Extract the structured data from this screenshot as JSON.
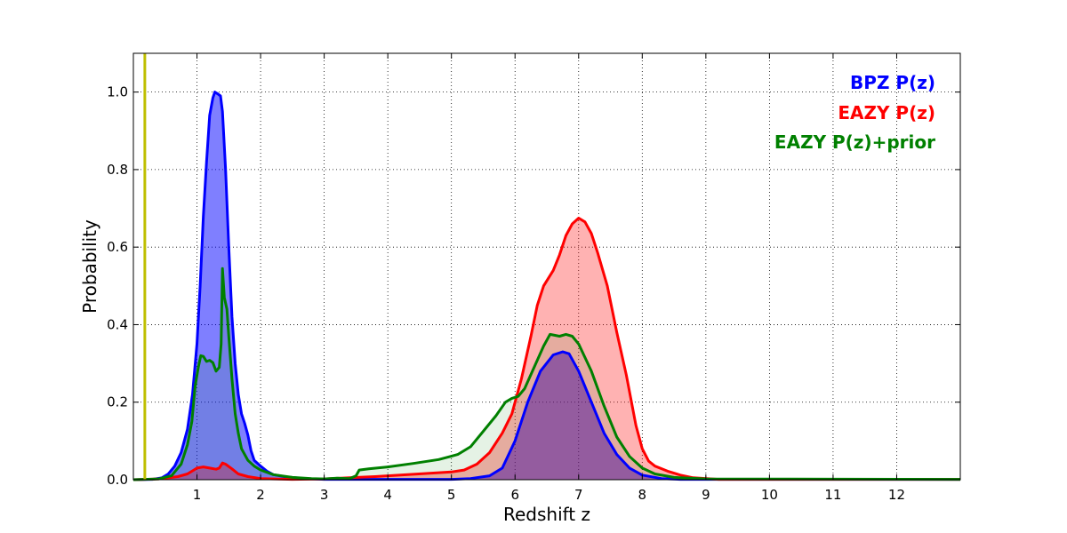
{
  "chart_data": {
    "type": "area",
    "title": "",
    "xlabel": "Redshift z",
    "ylabel": "Probability",
    "xlim": [
      0,
      13
    ],
    "ylim": [
      0,
      1.1
    ],
    "x_ticks": [
      1,
      2,
      3,
      4,
      5,
      6,
      7,
      8,
      9,
      10,
      11,
      12
    ],
    "y_ticks": [
      0.0,
      0.2,
      0.4,
      0.6,
      0.8,
      1.0
    ],
    "x_tick_labels": [
      "1",
      "2",
      "3",
      "4",
      "5",
      "6",
      "7",
      "8",
      "9",
      "10",
      "11",
      "12"
    ],
    "y_tick_labels": [
      "0.0",
      "0.2",
      "0.4",
      "0.6",
      "0.8",
      "1.0"
    ],
    "grid": true,
    "vline": {
      "x": 0.18,
      "color": "#bfbf00"
    },
    "legend_position": "top-right",
    "series": [
      {
        "name": "BPZ P(z)",
        "color": "#0000ff",
        "fill": "#0000ff",
        "fill_opacity": 0.5,
        "points": [
          [
            0,
            0
          ],
          [
            0.3,
            0.001
          ],
          [
            0.45,
            0.005
          ],
          [
            0.55,
            0.015
          ],
          [
            0.65,
            0.035
          ],
          [
            0.75,
            0.07
          ],
          [
            0.85,
            0.13
          ],
          [
            0.93,
            0.22
          ],
          [
            1.0,
            0.35
          ],
          [
            1.05,
            0.5
          ],
          [
            1.1,
            0.68
          ],
          [
            1.15,
            0.82
          ],
          [
            1.2,
            0.94
          ],
          [
            1.25,
            0.985
          ],
          [
            1.28,
            1.0
          ],
          [
            1.33,
            0.995
          ],
          [
            1.37,
            0.99
          ],
          [
            1.4,
            0.95
          ],
          [
            1.45,
            0.8
          ],
          [
            1.5,
            0.6
          ],
          [
            1.55,
            0.42
          ],
          [
            1.6,
            0.3
          ],
          [
            1.65,
            0.22
          ],
          [
            1.7,
            0.17
          ],
          [
            1.75,
            0.145
          ],
          [
            1.8,
            0.115
          ],
          [
            1.85,
            0.075
          ],
          [
            1.9,
            0.05
          ],
          [
            2.0,
            0.035
          ],
          [
            2.1,
            0.022
          ],
          [
            2.2,
            0.013
          ],
          [
            2.4,
            0.007
          ],
          [
            2.7,
            0.003
          ],
          [
            3.0,
            0.001
          ],
          [
            5.0,
            0.001
          ],
          [
            5.3,
            0.003
          ],
          [
            5.6,
            0.01
          ],
          [
            5.8,
            0.03
          ],
          [
            6.0,
            0.1
          ],
          [
            6.2,
            0.2
          ],
          [
            6.4,
            0.28
          ],
          [
            6.6,
            0.322
          ],
          [
            6.75,
            0.33
          ],
          [
            6.85,
            0.325
          ],
          [
            7.0,
            0.28
          ],
          [
            7.2,
            0.2
          ],
          [
            7.4,
            0.12
          ],
          [
            7.6,
            0.065
          ],
          [
            7.8,
            0.03
          ],
          [
            8.0,
            0.012
          ],
          [
            8.3,
            0.003
          ],
          [
            8.6,
            0.001
          ],
          [
            13,
            0.001
          ]
        ]
      },
      {
        "name": "EAZY P(z)",
        "color": "#ff0000",
        "fill": "#ff0000",
        "fill_opacity": 0.3,
        "points": [
          [
            0,
            0
          ],
          [
            0.4,
            0.002
          ],
          [
            0.7,
            0.008
          ],
          [
            0.85,
            0.015
          ],
          [
            0.95,
            0.025
          ],
          [
            1.0,
            0.03
          ],
          [
            1.1,
            0.033
          ],
          [
            1.2,
            0.03
          ],
          [
            1.3,
            0.027
          ],
          [
            1.35,
            0.03
          ],
          [
            1.4,
            0.043
          ],
          [
            1.45,
            0.04
          ],
          [
            1.55,
            0.028
          ],
          [
            1.65,
            0.015
          ],
          [
            1.8,
            0.008
          ],
          [
            2.0,
            0.003
          ],
          [
            2.5,
            0.001
          ],
          [
            3.0,
            0.002
          ],
          [
            3.4,
            0.005
          ],
          [
            3.8,
            0.008
          ],
          [
            4.2,
            0.012
          ],
          [
            4.6,
            0.016
          ],
          [
            5.0,
            0.02
          ],
          [
            5.2,
            0.025
          ],
          [
            5.4,
            0.04
          ],
          [
            5.6,
            0.07
          ],
          [
            5.8,
            0.12
          ],
          [
            5.95,
            0.17
          ],
          [
            6.1,
            0.26
          ],
          [
            6.25,
            0.37
          ],
          [
            6.35,
            0.45
          ],
          [
            6.45,
            0.5
          ],
          [
            6.6,
            0.54
          ],
          [
            6.7,
            0.58
          ],
          [
            6.8,
            0.63
          ],
          [
            6.9,
            0.66
          ],
          [
            7.0,
            0.675
          ],
          [
            7.1,
            0.665
          ],
          [
            7.2,
            0.635
          ],
          [
            7.3,
            0.585
          ],
          [
            7.45,
            0.5
          ],
          [
            7.6,
            0.38
          ],
          [
            7.75,
            0.27
          ],
          [
            7.9,
            0.14
          ],
          [
            8.0,
            0.08
          ],
          [
            8.1,
            0.048
          ],
          [
            8.2,
            0.035
          ],
          [
            8.4,
            0.022
          ],
          [
            8.6,
            0.012
          ],
          [
            8.8,
            0.005
          ],
          [
            9.2,
            0.001
          ],
          [
            13,
            0.001
          ]
        ]
      },
      {
        "name": "EAZY P(z)+prior",
        "color": "#008000",
        "fill": "#008000",
        "fill_opacity": 0.1,
        "points": [
          [
            0,
            0
          ],
          [
            0.4,
            0.002
          ],
          [
            0.6,
            0.01
          ],
          [
            0.75,
            0.04
          ],
          [
            0.85,
            0.09
          ],
          [
            0.92,
            0.15
          ],
          [
            0.97,
            0.24
          ],
          [
            1.02,
            0.29
          ],
          [
            1.06,
            0.32
          ],
          [
            1.1,
            0.318
          ],
          [
            1.15,
            0.305
          ],
          [
            1.2,
            0.308
          ],
          [
            1.25,
            0.302
          ],
          [
            1.3,
            0.28
          ],
          [
            1.35,
            0.29
          ],
          [
            1.38,
            0.35
          ],
          [
            1.4,
            0.545
          ],
          [
            1.43,
            0.47
          ],
          [
            1.47,
            0.44
          ],
          [
            1.5,
            0.37
          ],
          [
            1.55,
            0.26
          ],
          [
            1.6,
            0.17
          ],
          [
            1.65,
            0.12
          ],
          [
            1.7,
            0.08
          ],
          [
            1.8,
            0.05
          ],
          [
            1.9,
            0.035
          ],
          [
            2.0,
            0.025
          ],
          [
            2.2,
            0.013
          ],
          [
            2.5,
            0.006
          ],
          [
            2.8,
            0.003
          ],
          [
            3.0,
            0.002
          ],
          [
            3.2,
            0.004
          ],
          [
            3.4,
            0.003
          ],
          [
            3.5,
            0.01
          ],
          [
            3.55,
            0.025
          ],
          [
            3.7,
            0.028
          ],
          [
            4.0,
            0.033
          ],
          [
            4.4,
            0.042
          ],
          [
            4.8,
            0.052
          ],
          [
            5.1,
            0.065
          ],
          [
            5.3,
            0.085
          ],
          [
            5.5,
            0.125
          ],
          [
            5.7,
            0.165
          ],
          [
            5.85,
            0.2
          ],
          [
            5.95,
            0.21
          ],
          [
            6.05,
            0.215
          ],
          [
            6.15,
            0.235
          ],
          [
            6.3,
            0.29
          ],
          [
            6.45,
            0.345
          ],
          [
            6.55,
            0.375
          ],
          [
            6.7,
            0.37
          ],
          [
            6.8,
            0.375
          ],
          [
            6.9,
            0.37
          ],
          [
            7.0,
            0.35
          ],
          [
            7.2,
            0.28
          ],
          [
            7.4,
            0.19
          ],
          [
            7.6,
            0.11
          ],
          [
            7.8,
            0.06
          ],
          [
            8.0,
            0.03
          ],
          [
            8.2,
            0.015
          ],
          [
            8.5,
            0.006
          ],
          [
            9.0,
            0.002
          ],
          [
            13,
            0.001
          ]
        ]
      }
    ],
    "legend": [
      "BPZ P(z)",
      "EAZY P(z)",
      "EAZY P(z)+prior"
    ]
  }
}
